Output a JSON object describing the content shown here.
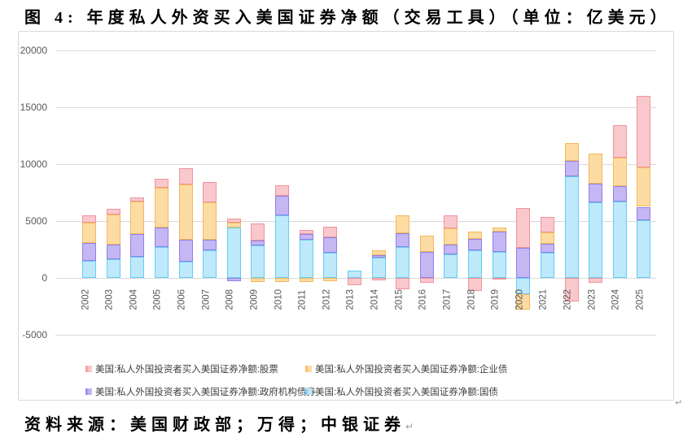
{
  "title": "图 4: 年度私人外资买入美国证券净额（交易工具）（单位：亿美元）",
  "source_line": "资料来源：美国财政部；万得；中银证券",
  "marks": {
    "source_end": "↵",
    "chart_corner": "↵"
  },
  "colors": {
    "grid": "#d9d9d9",
    "axis_text": "#595959",
    "legend_text": "#404040"
  },
  "chart_data": {
    "type": "bar",
    "stacked": true,
    "unit": "亿美元",
    "ylim": [
      -5000,
      20000
    ],
    "yticks": [
      20000,
      15000,
      10000,
      5000,
      0,
      -5000
    ],
    "grid": true,
    "legend_position": "bottom",
    "categories": [
      2002,
      2003,
      2004,
      2005,
      2006,
      2007,
      2008,
      2009,
      2010,
      2011,
      2012,
      2013,
      2014,
      2015,
      2016,
      2017,
      2018,
      2019,
      2020,
      2021,
      2022,
      2023,
      2024,
      2025
    ],
    "series": [
      {
        "name": "美国:私人外国投资者买入美国证券净额:国债",
        "fill": "#BEE9FB",
        "border": "#64CCF4",
        "values": [
          1500,
          1650,
          1850,
          2700,
          1450,
          2400,
          4400,
          2850,
          5500,
          3350,
          2200,
          650,
          1800,
          2700,
          0,
          2050,
          2450,
          2300,
          -1450,
          2200,
          8950,
          6650,
          6700,
          5050
        ]
      },
      {
        "name": "美国:私人外国投资者买入美国证券净额:政府机构债券",
        "fill": "#C4B7F3",
        "border": "#9180E4",
        "values": [
          1550,
          1300,
          2000,
          1700,
          1900,
          950,
          -300,
          450,
          1700,
          500,
          1350,
          0,
          200,
          1200,
          2300,
          850,
          1000,
          1800,
          2650,
          800,
          1350,
          1650,
          1350,
          1200
        ]
      },
      {
        "name": "美国:私人外国投资者买入美国证券净额:企业债",
        "fill": "#FCDCA2",
        "border": "#F3B95E",
        "values": [
          1800,
          2650,
          2850,
          3500,
          4850,
          3300,
          450,
          -350,
          -350,
          -350,
          -300,
          0,
          450,
          1600,
          1450,
          1450,
          650,
          350,
          -1350,
          1000,
          1550,
          2650,
          2550,
          3450
        ]
      },
      {
        "name": "美国:私人外国投资者买入美国证券净额:股票",
        "fill": "#F9C8CC",
        "border": "#F0949C",
        "values": [
          650,
          500,
          400,
          800,
          1450,
          1800,
          350,
          1500,
          950,
          350,
          950,
          -650,
          -200,
          -1000,
          -450,
          1150,
          -1150,
          -150,
          3500,
          1350,
          -2050,
          -450,
          2800,
          6300
        ]
      }
    ],
    "legend_display_order": [
      3,
      2,
      1,
      0
    ]
  }
}
